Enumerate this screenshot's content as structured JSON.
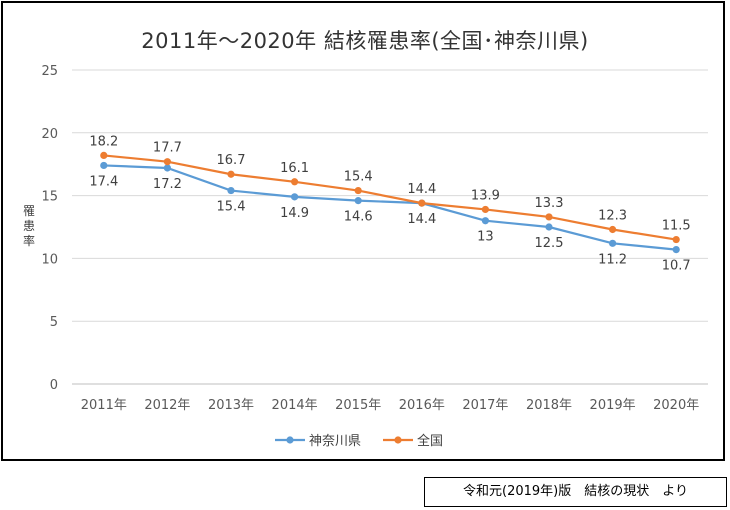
{
  "chart_data": {
    "type": "line",
    "title": "2011年～2020年 結核罹患率(全国･神奈川県)",
    "ylabel": "罹患率",
    "xlabel": "",
    "categories": [
      "2011年",
      "2012年",
      "2013年",
      "2014年",
      "2015年",
      "2016年",
      "2017年",
      "2018年",
      "2019年",
      "2020年"
    ],
    "series": [
      {
        "name": "神奈川県",
        "color": "#5b9bd5",
        "values": [
          17.4,
          17.2,
          15.4,
          14.9,
          14.6,
          14.4,
          13.0,
          12.5,
          11.2,
          10.7
        ],
        "labels": [
          "17.4",
          "17.2",
          "15.4",
          "14.9",
          "14.6",
          "14.4",
          "13",
          "12.5",
          "11.2",
          "10.7"
        ]
      },
      {
        "name": "全国",
        "color": "#ed7d31",
        "values": [
          18.2,
          17.7,
          16.7,
          16.1,
          15.4,
          14.4,
          13.9,
          13.3,
          12.3,
          11.5
        ],
        "labels": [
          "18.2",
          "17.7",
          "16.7",
          "16.1",
          "15.4",
          "14.4",
          "13.9",
          "13.3",
          "12.3",
          "11.5"
        ]
      }
    ],
    "yticks": [
      "0",
      "5",
      "10",
      "15",
      "20",
      "25"
    ],
    "ylim": [
      0,
      25
    ],
    "grid": true,
    "legend": "bottom"
  },
  "source_note": "令和元(2019年)版　結核の現状　より"
}
